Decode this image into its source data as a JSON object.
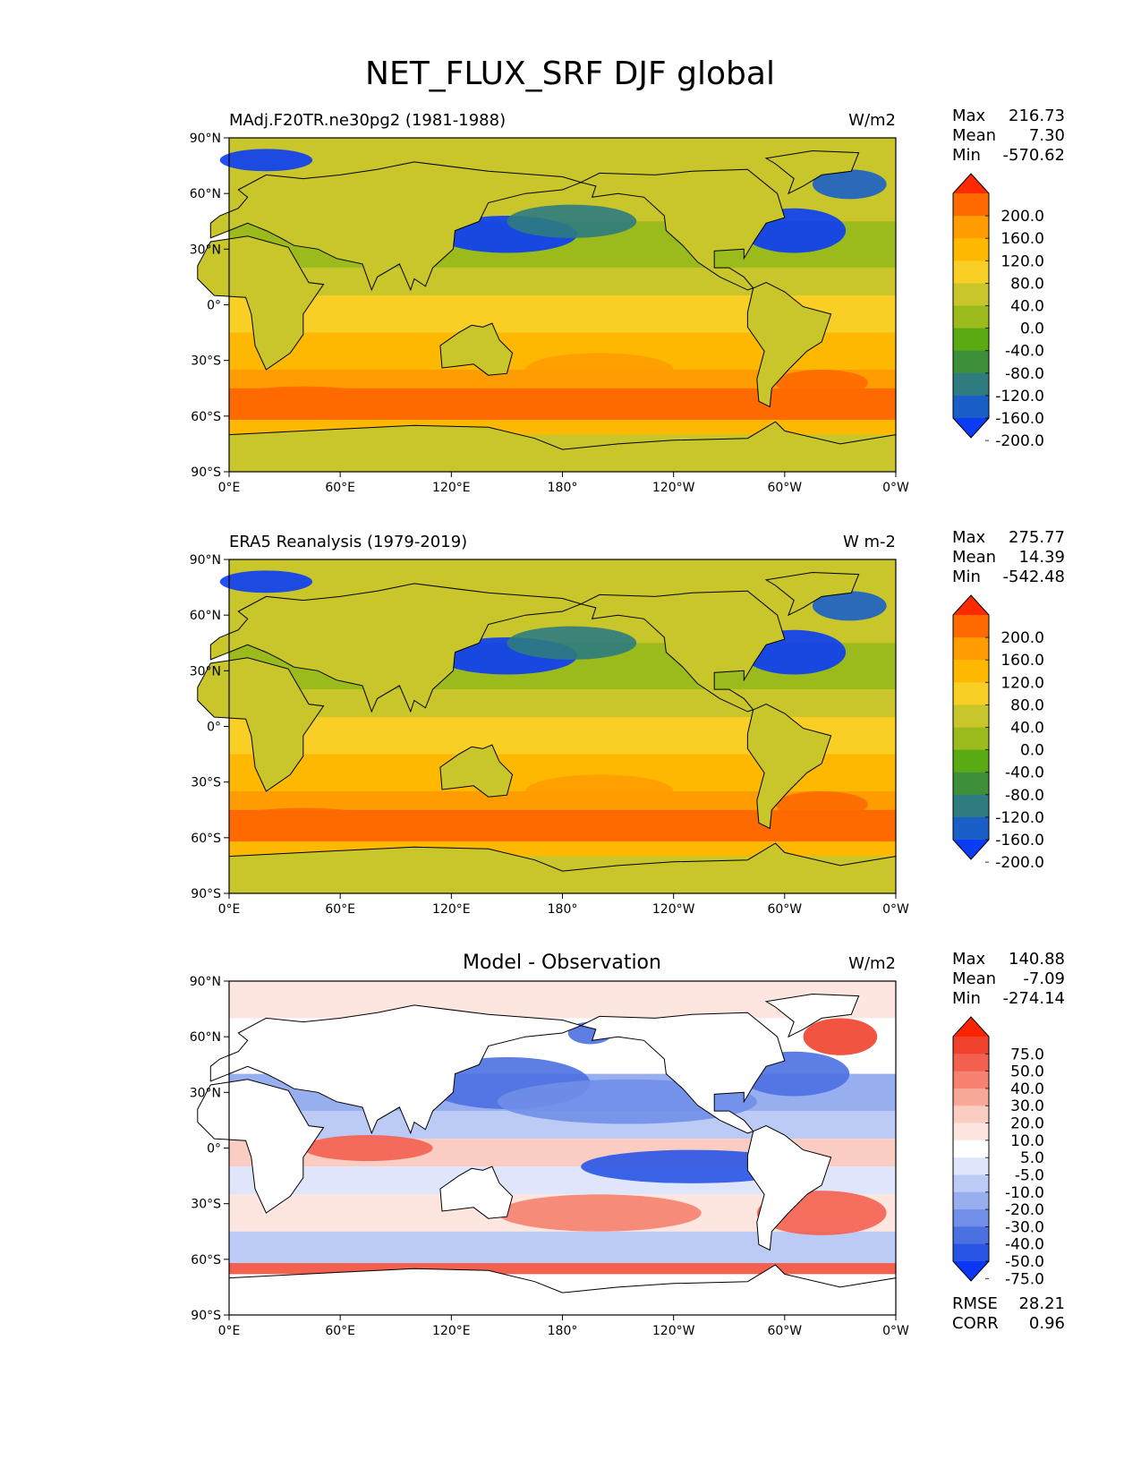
{
  "figure": {
    "title": "NET_FLUX_SRF DJF global"
  },
  "axes": {
    "lat_ticks": [
      "90°N",
      "60°N",
      "30°N",
      "0°",
      "30°S",
      "60°S",
      "90°S"
    ],
    "lon_ticks": [
      "0°E",
      "60°E",
      "120°E",
      "180°",
      "120°W",
      "60°W",
      "0°W"
    ]
  },
  "panels": [
    {
      "left_title": "MAdj.F20TR.ne30pg2 (1981-1988)",
      "center_title": "",
      "units": "W/m2",
      "stats": [
        {
          "label": "Max",
          "value": "216.73"
        },
        {
          "label": "Mean",
          "value": "7.30"
        },
        {
          "label": "Min",
          "value": "-570.62"
        }
      ],
      "colorbar": {
        "labels": [
          "200.0",
          "160.0",
          "120.0",
          "80.0",
          "40.0",
          "0.0",
          "-40.0",
          "-80.0",
          "-120.0",
          "-160.0",
          "-200.0"
        ],
        "colors": [
          "#ff2a00",
          "#ff6a00",
          "#ff9c00",
          "#ffb800",
          "#f9cf25",
          "#c8c62a",
          "#9bbb1d",
          "#5aaa14",
          "#3d8f3a",
          "#2e7b80",
          "#1a5fc8",
          "#0a3cf5"
        ]
      }
    },
    {
      "left_title": "ERA5 Reanalysis (1979-2019)",
      "center_title": "",
      "units": "W m-2",
      "stats": [
        {
          "label": "Max",
          "value": "275.77"
        },
        {
          "label": "Mean",
          "value": "14.39"
        },
        {
          "label": "Min",
          "value": "-542.48"
        }
      ],
      "colorbar": {
        "labels": [
          "200.0",
          "160.0",
          "120.0",
          "80.0",
          "40.0",
          "0.0",
          "-40.0",
          "-80.0",
          "-120.0",
          "-160.0",
          "-200.0"
        ],
        "colors": [
          "#ff2a00",
          "#ff6a00",
          "#ff9c00",
          "#ffb800",
          "#f9cf25",
          "#c8c62a",
          "#9bbb1d",
          "#5aaa14",
          "#3d8f3a",
          "#2e7b80",
          "#1a5fc8",
          "#0a3cf5"
        ]
      }
    },
    {
      "left_title": "",
      "center_title": "Model - Observation",
      "units": "W/m2",
      "stats": [
        {
          "label": "Max",
          "value": "140.88"
        },
        {
          "label": "Mean",
          "value": "-7.09"
        },
        {
          "label": "Min",
          "value": "-274.14"
        }
      ],
      "extra_stats": [
        {
          "label": "RMSE",
          "value": "28.21"
        },
        {
          "label": "CORR",
          "value": "0.96"
        }
      ],
      "colorbar": {
        "labels": [
          "75.0",
          "50.0",
          "40.0",
          "30.0",
          "20.0",
          "10.0",
          "5.0",
          "-5.0",
          "-10.0",
          "-20.0",
          "-30.0",
          "-40.0",
          "-50.0",
          "-75.0"
        ],
        "colors": [
          "#ff2400",
          "#f0412c",
          "#f46050",
          "#f6816f",
          "#f9a797",
          "#fbcdc2",
          "#fde6e0",
          "#ffffff",
          "#dfe6fb",
          "#bccbf6",
          "#97aeef",
          "#6f8fe8",
          "#4b70e2",
          "#2855e6",
          "#0a36f5"
        ]
      }
    }
  ],
  "chart_data": [
    {
      "type": "heatmap",
      "title": "MAdj.F20TR.ne30pg2 (1981-1988)",
      "variable": "NET_FLUX_SRF",
      "season": "DJF",
      "region": "global",
      "units": "W/m2",
      "x_range_deg": [
        0,
        360
      ],
      "y_range_deg": [
        -90,
        90
      ],
      "levels": [
        -200,
        -160,
        -120,
        -80,
        -40,
        0,
        40,
        80,
        120,
        160,
        200
      ],
      "stats": {
        "max": 216.73,
        "mean": 7.3,
        "min": -570.62
      }
    },
    {
      "type": "heatmap",
      "title": "ERA5 Reanalysis (1979-2019)",
      "variable": "NET_FLUX_SRF",
      "season": "DJF",
      "region": "global",
      "units": "W m-2",
      "x_range_deg": [
        0,
        360
      ],
      "y_range_deg": [
        -90,
        90
      ],
      "levels": [
        -200,
        -160,
        -120,
        -80,
        -40,
        0,
        40,
        80,
        120,
        160,
        200
      ],
      "stats": {
        "max": 275.77,
        "mean": 14.39,
        "min": -542.48
      }
    },
    {
      "type": "heatmap",
      "title": "Model - Observation",
      "units": "W/m2",
      "x_range_deg": [
        0,
        360
      ],
      "y_range_deg": [
        -90,
        90
      ],
      "levels": [
        -75,
        -50,
        -40,
        -30,
        -20,
        -10,
        -5,
        5,
        10,
        20,
        30,
        40,
        50,
        75
      ],
      "stats": {
        "max": 140.88,
        "mean": -7.09,
        "min": -274.14,
        "rmse": 28.21,
        "corr": 0.96
      }
    }
  ]
}
